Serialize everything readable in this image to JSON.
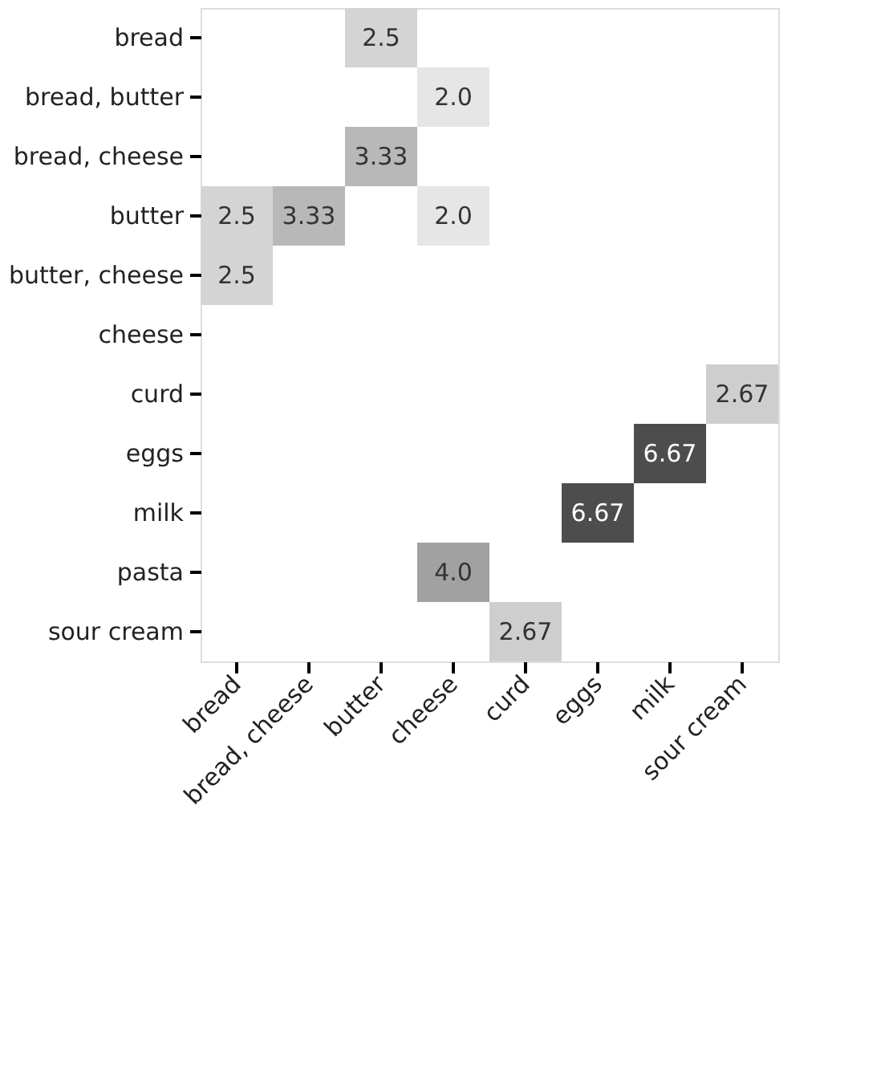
{
  "chart_data": {
    "type": "heatmap",
    "categories": [
      "bread",
      "bread, cheese",
      "butter",
      "cheese",
      "curd",
      "eggs",
      "milk",
      "sour cream"
    ],
    "y_categories": [
      "bread",
      "bread, butter",
      "bread, cheese",
      "butter",
      "butter, cheese",
      "cheese",
      "curd",
      "eggs",
      "milk",
      "pasta",
      "sour cream"
    ],
    "cells": [
      [
        null,
        null,
        2.5,
        null,
        null,
        null,
        null,
        null
      ],
      [
        null,
        null,
        null,
        2.0,
        null,
        null,
        null,
        null
      ],
      [
        null,
        null,
        3.33,
        null,
        null,
        null,
        null,
        null
      ],
      [
        2.5,
        3.33,
        null,
        2.0,
        null,
        null,
        null,
        null
      ],
      [
        2.5,
        null,
        null,
        null,
        null,
        null,
        null,
        null
      ],
      [
        null,
        null,
        null,
        null,
        null,
        null,
        null,
        null
      ],
      [
        null,
        null,
        null,
        null,
        null,
        null,
        null,
        2.67
      ],
      [
        null,
        null,
        null,
        null,
        null,
        null,
        6.67,
        null
      ],
      [
        null,
        null,
        null,
        null,
        null,
        6.67,
        null,
        null
      ],
      [
        null,
        null,
        null,
        4.0,
        null,
        null,
        null,
        null
      ],
      [
        null,
        null,
        null,
        null,
        2.67,
        null,
        null,
        null
      ]
    ],
    "cell_labels": [
      [
        null,
        null,
        "2.5",
        null,
        null,
        null,
        null,
        null
      ],
      [
        null,
        null,
        null,
        "2.0",
        null,
        null,
        null,
        null
      ],
      [
        null,
        null,
        "3.33",
        null,
        null,
        null,
        null,
        null
      ],
      [
        "2.5",
        "3.33",
        null,
        "2.0",
        null,
        null,
        null,
        null
      ],
      [
        "2.5",
        null,
        null,
        null,
        null,
        null,
        null,
        null
      ],
      [
        null,
        null,
        null,
        null,
        null,
        null,
        null,
        null
      ],
      [
        null,
        null,
        null,
        null,
        null,
        null,
        null,
        "2.67"
      ],
      [
        null,
        null,
        null,
        null,
        null,
        null,
        "6.67",
        null
      ],
      [
        null,
        null,
        null,
        null,
        null,
        "6.67",
        null,
        null
      ],
      [
        null,
        null,
        null,
        "4.0",
        null,
        null,
        null,
        null
      ],
      [
        null,
        null,
        null,
        null,
        "2.67",
        null,
        null,
        null
      ]
    ]
  }
}
